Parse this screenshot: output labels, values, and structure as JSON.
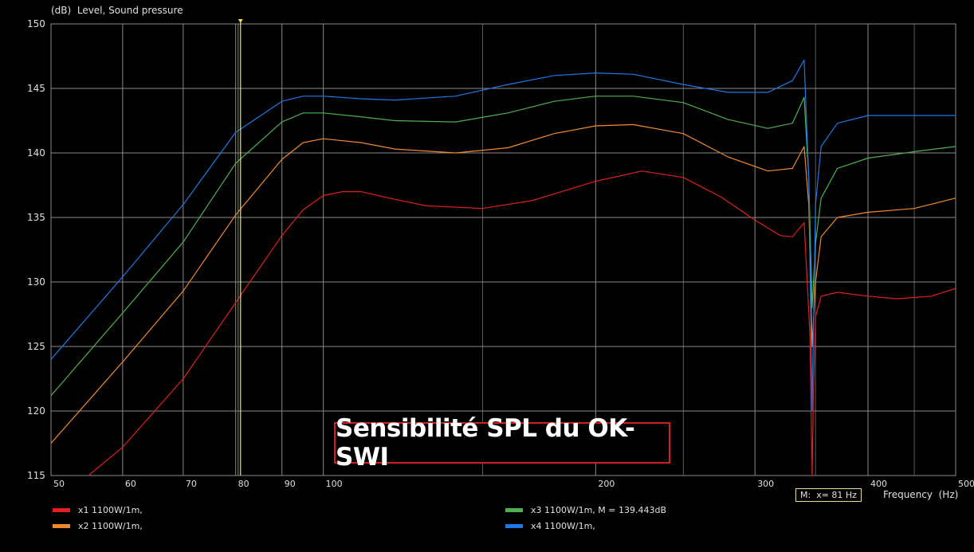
{
  "chart_data": {
    "type": "line",
    "ylabel": "(dB)  Level, Sound pressure",
    "xlabel": "Frequency  (Hz)",
    "x_scale": "log",
    "xlim": [
      50,
      500
    ],
    "ylim": [
      115,
      150
    ],
    "grid": true,
    "x_ticks": [
      50,
      60,
      70,
      80,
      90,
      100,
      200,
      300,
      400,
      500
    ],
    "x_tick_labels": [
      "50",
      "60",
      "70",
      "80",
      "90",
      "100",
      "200",
      "300",
      "400",
      "500"
    ],
    "y_ticks": [
      115,
      120,
      125,
      130,
      135,
      140,
      145,
      150
    ],
    "y_tick_labels": [
      "115",
      "120",
      "125",
      "130",
      "135",
      "140",
      "145",
      "150"
    ],
    "cursor": {
      "x": 81,
      "label": "M:  x= 81 Hz"
    },
    "annotation": "Sensibilité SPL du OK-SWI",
    "series": [
      {
        "name": "x1 1100W/1m,",
        "color": "#e02020",
        "points": [
          [
            55,
            115
          ],
          [
            60,
            117.2
          ],
          [
            70,
            122.5
          ],
          [
            80,
            128.4
          ],
          [
            90,
            133.6
          ],
          [
            95,
            135.6
          ],
          [
            100,
            136.7
          ],
          [
            105,
            137
          ],
          [
            110,
            137
          ],
          [
            120,
            136.4
          ],
          [
            130,
            135.9
          ],
          [
            150,
            135.7
          ],
          [
            170,
            136.3
          ],
          [
            200,
            137.8
          ],
          [
            225,
            138.6
          ],
          [
            250,
            138.1
          ],
          [
            275,
            136.6
          ],
          [
            300,
            134.8
          ],
          [
            320,
            133.6
          ],
          [
            330,
            133.5
          ],
          [
            340,
            134.6
          ],
          [
            345,
            126
          ],
          [
            347,
            115
          ],
          [
            348,
            121
          ],
          [
            350,
            127.3
          ],
          [
            355,
            128.9
          ],
          [
            370,
            129.2
          ],
          [
            400,
            128.9
          ],
          [
            430,
            128.7
          ],
          [
            470,
            128.9
          ],
          [
            500,
            129.5
          ]
        ]
      },
      {
        "name": "x2 1100W/1m,",
        "color": "#f08a2a",
        "points": [
          [
            50,
            117.5
          ],
          [
            60,
            123.8
          ],
          [
            70,
            129.3
          ],
          [
            80,
            135.2
          ],
          [
            90,
            139.5
          ],
          [
            95,
            140.8
          ],
          [
            100,
            141.1
          ],
          [
            110,
            140.8
          ],
          [
            120,
            140.3
          ],
          [
            140,
            140
          ],
          [
            160,
            140.4
          ],
          [
            180,
            141.5
          ],
          [
            200,
            142.1
          ],
          [
            220,
            142.2
          ],
          [
            250,
            141.5
          ],
          [
            280,
            139.7
          ],
          [
            310,
            138.6
          ],
          [
            330,
            138.8
          ],
          [
            340,
            140.5
          ],
          [
            344,
            136
          ],
          [
            347,
            125
          ],
          [
            350,
            130
          ],
          [
            355,
            133.5
          ],
          [
            370,
            135
          ],
          [
            400,
            135.4
          ],
          [
            450,
            135.7
          ],
          [
            500,
            136.5
          ]
        ]
      },
      {
        "name": "x3 1100W/1m, M = 139.443dB",
        "color": "#4caf50",
        "points": [
          [
            50,
            121.2
          ],
          [
            60,
            127.6
          ],
          [
            70,
            133.1
          ],
          [
            80,
            139.2
          ],
          [
            90,
            142.4
          ],
          [
            95,
            143.1
          ],
          [
            100,
            143.1
          ],
          [
            110,
            142.8
          ],
          [
            120,
            142.5
          ],
          [
            140,
            142.4
          ],
          [
            160,
            143.1
          ],
          [
            180,
            144
          ],
          [
            200,
            144.4
          ],
          [
            220,
            144.4
          ],
          [
            250,
            143.9
          ],
          [
            280,
            142.6
          ],
          [
            310,
            141.9
          ],
          [
            330,
            142.3
          ],
          [
            340,
            144.3
          ],
          [
            344,
            138
          ],
          [
            347,
            128
          ],
          [
            350,
            133
          ],
          [
            355,
            136.5
          ],
          [
            370,
            138.8
          ],
          [
            400,
            139.6
          ],
          [
            450,
            140.1
          ],
          [
            500,
            140.5
          ]
        ]
      },
      {
        "name": "x4 1100W/1m,",
        "color": "#1e78e6",
        "points": [
          [
            50,
            124
          ],
          [
            60,
            130.4
          ],
          [
            70,
            136
          ],
          [
            80,
            141.6
          ],
          [
            90,
            144
          ],
          [
            95,
            144.4
          ],
          [
            100,
            144.4
          ],
          [
            110,
            144.2
          ],
          [
            120,
            144.1
          ],
          [
            140,
            144.4
          ],
          [
            160,
            145.3
          ],
          [
            180,
            146
          ],
          [
            200,
            146.2
          ],
          [
            220,
            146.1
          ],
          [
            250,
            145.3
          ],
          [
            280,
            144.7
          ],
          [
            310,
            144.7
          ],
          [
            330,
            145.6
          ],
          [
            340,
            147.2
          ],
          [
            344,
            138
          ],
          [
            347,
            120
          ],
          [
            350,
            136
          ],
          [
            355,
            140.5
          ],
          [
            370,
            142.3
          ],
          [
            400,
            142.9
          ],
          [
            450,
            142.9
          ],
          [
            500,
            142.9
          ]
        ]
      }
    ]
  }
}
